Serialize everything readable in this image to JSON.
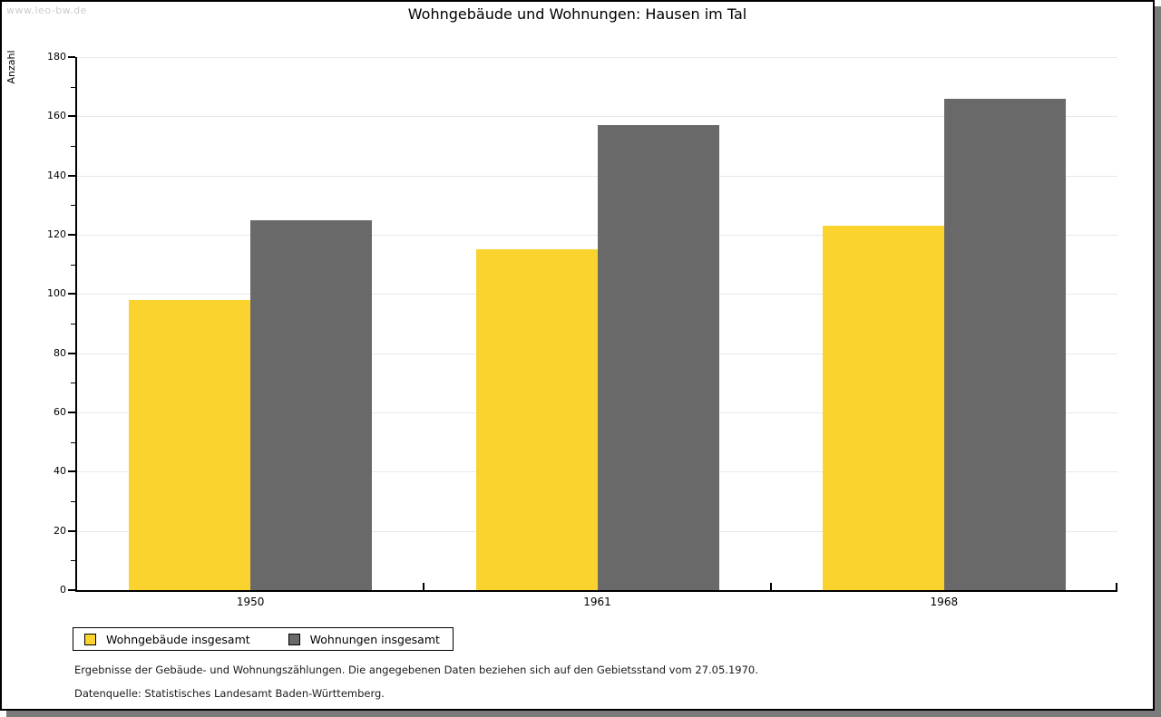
{
  "watermark": "www.leo-bw.de",
  "title": "Wohngebäude und Wohnungen: Hausen im Tal",
  "chart_data": {
    "type": "bar",
    "title": "Wohngebäude und Wohnungen: Hausen im Tal",
    "xlabel": "",
    "ylabel": "Anzahl",
    "categories": [
      "1950",
      "1961",
      "1968"
    ],
    "series": [
      {
        "name": "Wohngebäude insgesamt",
        "color": "#fbd32f",
        "values": [
          98,
          115,
          123
        ]
      },
      {
        "name": "Wohnungen insgesamt",
        "color": "#696969",
        "values": [
          125,
          157,
          166
        ]
      }
    ],
    "ylim": [
      0,
      180
    ],
    "ytick_step": 20,
    "ytick_minor_step": 10,
    "grid": true,
    "gridline_color": "#e8e8e8",
    "legend_position": "bottom-left"
  },
  "footnotes": [
    "Ergebnisse der Gebäude- und Wohnungszählungen. Die angegebenen Daten beziehen sich auf den Gebietsstand vom 27.05.1970.",
    "Datenquelle: Statistisches Landesamt Baden-Württemberg."
  ]
}
